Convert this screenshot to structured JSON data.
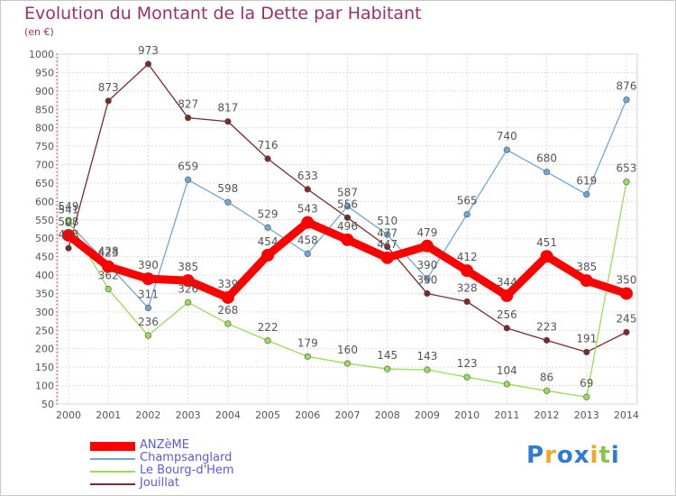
{
  "chart_data": {
    "type": "line",
    "title": "Evolution du Montant de la Dette par Habitant",
    "subtitle": "(en €)",
    "x": [
      "2000",
      "2001",
      "2002",
      "2003",
      "2004",
      "2005",
      "2006",
      "2007",
      "2008",
      "2009",
      "2010",
      "2011",
      "2012",
      "2013",
      "2014"
    ],
    "ylim": [
      50,
      1000
    ],
    "yticks": [
      50,
      100,
      150,
      200,
      250,
      300,
      350,
      400,
      450,
      500,
      550,
      600,
      650,
      700,
      750,
      800,
      850,
      900,
      950,
      1000
    ],
    "grid": true,
    "legend_position": "bottom-left",
    "series": [
      {
        "name": "ANZèME",
        "color": "#ff0000",
        "values": [
          508,
          423,
          390,
          385,
          339,
          454,
          543,
          496,
          447,
          479,
          412,
          344,
          451,
          385,
          350
        ]
      },
      {
        "name": "Champsanglard",
        "color": "#6fa6d6",
        "values": [
          541,
          428,
          311,
          659,
          598,
          529,
          458,
          587,
          510,
          390,
          565,
          740,
          680,
          619,
          876
        ]
      },
      {
        "name": "Le Bourg-d'Hem",
        "color": "#99dd55",
        "values": [
          549,
          362,
          236,
          326,
          268,
          222,
          179,
          160,
          145,
          143,
          123,
          104,
          86,
          69,
          653
        ]
      },
      {
        "name": "Jouillat",
        "color": "#7a2a2a",
        "values": [
          473,
          873,
          973,
          827,
          817,
          716,
          633,
          556,
          477,
          350,
          328,
          256,
          223,
          191,
          245
        ]
      }
    ]
  },
  "logo": {
    "letters": [
      "P",
      "r",
      "o",
      "x",
      "i",
      "t",
      "i"
    ],
    "colors": [
      "#2e7bd0",
      "#f5a623",
      "#2e7bd0",
      "#2e7bd0",
      "#f5a623",
      "#8bc34a",
      "#2e7bd0"
    ]
  }
}
